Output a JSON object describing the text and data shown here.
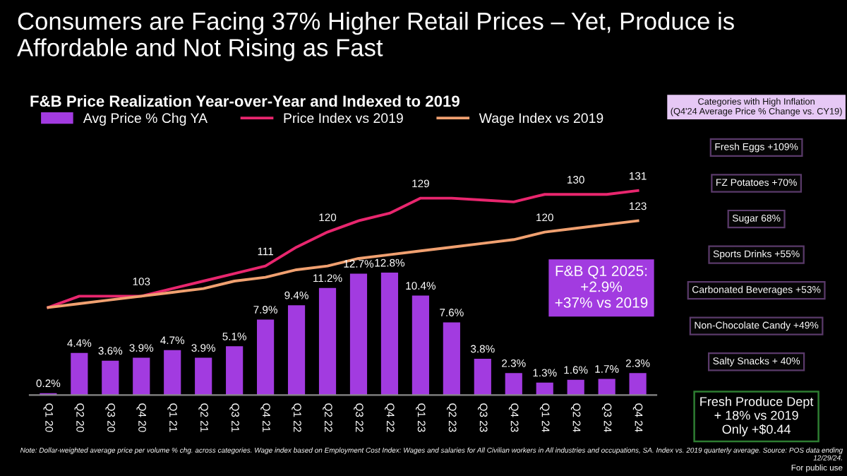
{
  "chart_data": {
    "type": "bar",
    "title": "Consumers are Facing 37% Higher Retail Prices – Yet, Produce is Affordable and Not Rising as Fast",
    "subtitle": "F&B Price Realization Year-over-Year and Indexed to 2019",
    "categories": [
      "Q1 20",
      "Q2 20",
      "Q3 20",
      "Q4 20",
      "Q1 21",
      "Q2 21",
      "Q3 21",
      "Q4 21",
      "Q1 22",
      "Q2 22",
      "Q3 22",
      "Q4 22",
      "Q1 23",
      "Q2 23",
      "Q3 23",
      "Q4 23",
      "Q1 24",
      "Q2 24",
      "Q3 24",
      "Q4 24"
    ],
    "series": [
      {
        "name": "Avg Price % Chg YA",
        "color": "#a23be0",
        "values": [
          0.2,
          4.4,
          3.6,
          3.9,
          4.7,
          3.9,
          5.1,
          7.9,
          9.4,
          11.2,
          12.7,
          12.8,
          10.4,
          7.6,
          3.8,
          2.3,
          1.3,
          1.6,
          1.7,
          2.3
        ],
        "value_labels": [
          "0.2%",
          "4.4%",
          "3.6%",
          "3.9%",
          "4.7%",
          "3.9%",
          "5.1%",
          "7.9%",
          "9.4%",
          "11.2%",
          "12.7%",
          "12.8%",
          "10.4%",
          "7.6%",
          "3.8%",
          "2.3%",
          "1.3%",
          "1.6%",
          "1.7%",
          "2.3%"
        ]
      },
      {
        "name": "Price Index vs 2019",
        "type": "line",
        "axis": "y2",
        "color": "#e8266e",
        "values": [
          100,
          103,
          103,
          103,
          105,
          107,
          109,
          111,
          116,
          120,
          123,
          125,
          129,
          129,
          128.5,
          128,
          130,
          130,
          130,
          131
        ],
        "value_labels": [
          null,
          null,
          null,
          "103",
          null,
          null,
          null,
          "111",
          null,
          "120",
          null,
          null,
          "129",
          null,
          null,
          null,
          null,
          "130",
          null,
          "131"
        ]
      },
      {
        "name": "Wage Index vs 2019",
        "type": "line",
        "axis": "y2",
        "color": "#f0a070",
        "values": [
          100,
          101,
          102,
          103,
          104,
          105,
          107,
          108,
          110,
          111,
          113,
          114,
          115,
          116,
          117,
          118,
          120,
          121,
          122,
          123
        ],
        "value_labels": [
          null,
          null,
          null,
          null,
          null,
          null,
          null,
          null,
          null,
          null,
          null,
          null,
          null,
          null,
          null,
          null,
          "120",
          null,
          null,
          "123"
        ]
      }
    ],
    "tick_labels": "x",
    "legend": "top left",
    "marker": "none",
    "line_style": "solid",
    "annotations": [
      "F&B Q1 2025:\n+2.9%\n+37% vs 2019",
      "Categories with High Inflation\n(Q4'24 Average Price % Change vs. CY19)",
      "Fresh Eggs +109%",
      "FZ Potatoes +70%",
      "Sugar 68%",
      "Sports Drinks +55%",
      "Carbonated Beverages +53%",
      "Non-Chocolate Candy +49%",
      "Salty Snacks + 40%",
      "Fresh Produce Dept\n+ 18% vs 2019\nOnly +$0.44",
      "Note: Dollar-weighted average price per volume % chg. across categories. Wage index based on Employment Cost Index: Wages and salaries for All Civilian workers in All industries and occupations, SA. Index vs. 2019 quarterly average. Source: POS data ending 12/29/24.",
      "For public use"
    ]
  }
}
